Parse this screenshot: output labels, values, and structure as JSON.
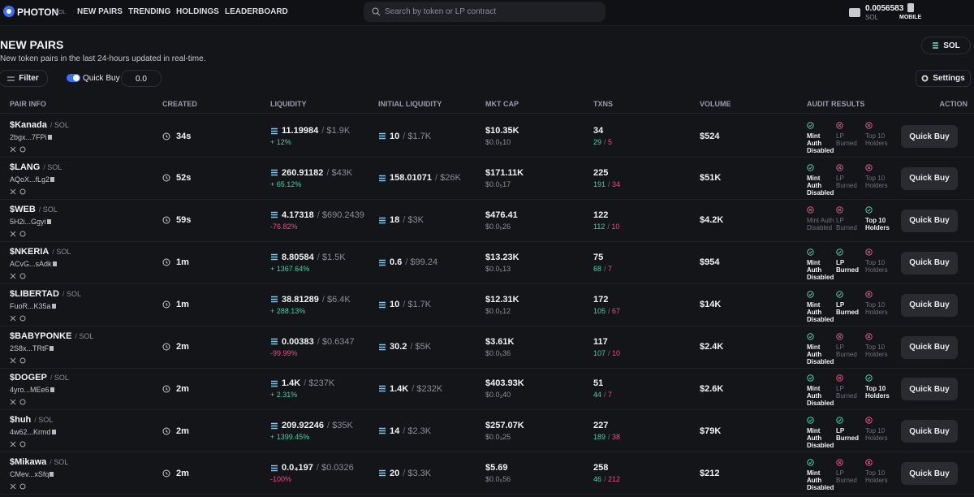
{
  "nav": {
    "logo": "PHOTON",
    "logo_badge": "SOL",
    "items": [
      "NEW PAIRS",
      "TRENDING",
      "HOLDINGS",
      "LEADERBOARD"
    ],
    "search_placeholder": "Search by token or LP contract",
    "wallet_balance": "0.0056583",
    "wallet_currency": "SOL",
    "mobile": "MOBILE"
  },
  "header": {
    "title": "NEW PAIRS",
    "subtitle": "New token pairs in the last 24-hours updated in real-time.",
    "chain": "SOL",
    "filter": "Filter",
    "quick_buy": "Quick Buy",
    "quick_buy_amount": "0.0",
    "settings": "Settings"
  },
  "table": {
    "columns": [
      "PAIR INFO",
      "CREATED",
      "LIQUIDITY",
      "INITIAL LIQUIDITY",
      "MKT CAP",
      "TXNS",
      "VOLUME",
      "AUDIT RESULTS",
      "ACTION"
    ],
    "audit_labels": [
      "Mint Auth Disabled",
      "LP Burned",
      "Top 10 Holders"
    ],
    "action_button": "Quick Buy",
    "rows": [
      {
        "symbol": "$Kanada",
        "quote": "SOL",
        "address": "2bgx...7FPi",
        "created": "34s",
        "liquidity": "11.19984",
        "liquidity_usd": "$1.9K",
        "change": "+ 12%",
        "initial": "10",
        "initial_usd": "$1.7K",
        "mkt_cap": "$10.35K",
        "price": "$0.0₅10",
        "txns": "34",
        "buys": "29",
        "sells": "5",
        "volume": "$524",
        "audit": [
          true,
          false,
          false
        ]
      },
      {
        "symbol": "$LANG",
        "quote": "SOL",
        "address": "AQoX...fLg2",
        "created": "52s",
        "liquidity": "260.91182",
        "liquidity_usd": "$43K",
        "change": "+ 65.12%",
        "initial": "158.01071",
        "initial_usd": "$26K",
        "mkt_cap": "$171.11K",
        "price": "$0.0₅17",
        "txns": "225",
        "buys": "191",
        "sells": "34",
        "volume": "$51K",
        "audit": [
          true,
          false,
          false
        ]
      },
      {
        "symbol": "$WEB",
        "quote": "SOL",
        "address": "5H2i...Ggyi",
        "created": "59s",
        "liquidity": "4.17318",
        "liquidity_usd": "$690.2439",
        "change": "-76.82%",
        "initial": "18",
        "initial_usd": "$3K",
        "mkt_cap": "$476.41",
        "price": "$0.0₆26",
        "txns": "122",
        "buys": "112",
        "sells": "10",
        "volume": "$4.2K",
        "audit": [
          false,
          false,
          true
        ]
      },
      {
        "symbol": "$NKERIA",
        "quote": "SOL",
        "address": "ACvG...sAdk",
        "created": "1m",
        "liquidity": "8.80584",
        "liquidity_usd": "$1.5K",
        "change": "+ 1367.64%",
        "initial": "0.6",
        "initial_usd": "$99.24",
        "mkt_cap": "$13.23K",
        "price": "$0.0₅13",
        "txns": "75",
        "buys": "68",
        "sells": "7",
        "volume": "$954",
        "audit": [
          true,
          true,
          false
        ]
      },
      {
        "symbol": "$LIBERTAD",
        "quote": "SOL",
        "address": "FuoR...K35a",
        "created": "1m",
        "liquidity": "38.81289",
        "liquidity_usd": "$6.4K",
        "change": "+ 288.13%",
        "initial": "10",
        "initial_usd": "$1.7K",
        "mkt_cap": "$12.31K",
        "price": "$0.0₅12",
        "txns": "172",
        "buys": "105",
        "sells": "67",
        "volume": "$14K",
        "audit": [
          true,
          true,
          false
        ]
      },
      {
        "symbol": "$BABYPONKE",
        "quote": "SOL",
        "address": "2S8x...TRtF",
        "created": "2m",
        "liquidity": "0.00383",
        "liquidity_usd": "$0.6347",
        "change": "-99.99%",
        "initial": "30.2",
        "initial_usd": "$5K",
        "mkt_cap": "$3.61K",
        "price": "$0.0₅36",
        "txns": "117",
        "buys": "107",
        "sells": "10",
        "volume": "$2.4K",
        "audit": [
          true,
          false,
          false
        ]
      },
      {
        "symbol": "$DOGEP",
        "quote": "SOL",
        "address": "4yro...MEe6",
        "created": "2m",
        "liquidity": "1.4K",
        "liquidity_usd": "$237K",
        "change": "+ 2.31%",
        "initial": "1.4K",
        "initial_usd": "$232K",
        "mkt_cap": "$403.93K",
        "price": "$0.0₃40",
        "txns": "51",
        "buys": "44",
        "sells": "7",
        "volume": "$2.6K",
        "audit": [
          true,
          false,
          true
        ]
      },
      {
        "symbol": "$huh",
        "quote": "SOL",
        "address": "4w62...Krmd",
        "created": "2m",
        "liquidity": "209.92246",
        "liquidity_usd": "$35K",
        "change": "+ 1399.45%",
        "initial": "14",
        "initial_usd": "$2.3K",
        "mkt_cap": "$257.07K",
        "price": "$0.0₃25",
        "txns": "227",
        "buys": "189",
        "sells": "38",
        "volume": "$79K",
        "audit": [
          true,
          true,
          false
        ]
      },
      {
        "symbol": "$Mikawa",
        "quote": "SOL",
        "address": "CMev...xSfq",
        "created": "2m",
        "liquidity": "0.0₄197",
        "liquidity_usd": "$0.0326",
        "change": "-100%",
        "initial": "20",
        "initial_usd": "$3.3K",
        "mkt_cap": "$5.69",
        "price": "$0.0₅56",
        "txns": "258",
        "buys": "46",
        "sells": "212",
        "volume": "$212",
        "audit": [
          true,
          false,
          false
        ]
      }
    ]
  }
}
